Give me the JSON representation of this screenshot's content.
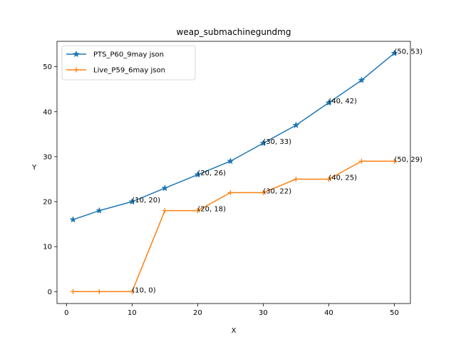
{
  "chart_data": {
    "type": "line",
    "title": "weap_submachinegundmg",
    "xlabel": "X",
    "ylabel": "Y",
    "xlim": [
      -1.45,
      52.45
    ],
    "ylim": [
      -2.65,
      55.65
    ],
    "xticks": [
      0,
      10,
      20,
      30,
      40,
      50
    ],
    "yticks": [
      0,
      10,
      20,
      30,
      40,
      50
    ],
    "grid": false,
    "legend_position": "top-left",
    "series": [
      {
        "name": "PTS_P60_9may json",
        "color": "#1f77b4",
        "marker": "star",
        "x": [
          1,
          5,
          10,
          15,
          20,
          25,
          30,
          35,
          40,
          45,
          50
        ],
        "y": [
          16,
          18,
          20,
          23,
          26,
          29,
          33,
          37,
          42,
          47,
          53
        ]
      },
      {
        "name": "Live_P59_6may json",
        "color": "#ff7f0e",
        "marker": "plus",
        "x": [
          1,
          5,
          10,
          15,
          20,
          25,
          30,
          35,
          40,
          45,
          50
        ],
        "y": [
          0,
          0,
          0,
          18,
          18,
          22,
          22,
          25,
          25,
          29,
          29
        ]
      }
    ],
    "annotations": [
      {
        "text": "(10, 20)",
        "x": 10,
        "y": 20
      },
      {
        "text": "(20, 26)",
        "x": 20,
        "y": 26
      },
      {
        "text": "(30, 33)",
        "x": 30,
        "y": 33
      },
      {
        "text": "(40, 42)",
        "x": 40,
        "y": 42
      },
      {
        "text": "(50, 53)",
        "x": 50,
        "y": 53
      },
      {
        "text": "(10, 0)",
        "x": 10,
        "y": 0
      },
      {
        "text": "(20, 18)",
        "x": 20,
        "y": 18
      },
      {
        "text": "(30, 22)",
        "x": 30,
        "y": 22
      },
      {
        "text": "(40, 25)",
        "x": 40,
        "y": 25
      },
      {
        "text": "(50, 29)",
        "x": 50,
        "y": 29
      }
    ]
  }
}
